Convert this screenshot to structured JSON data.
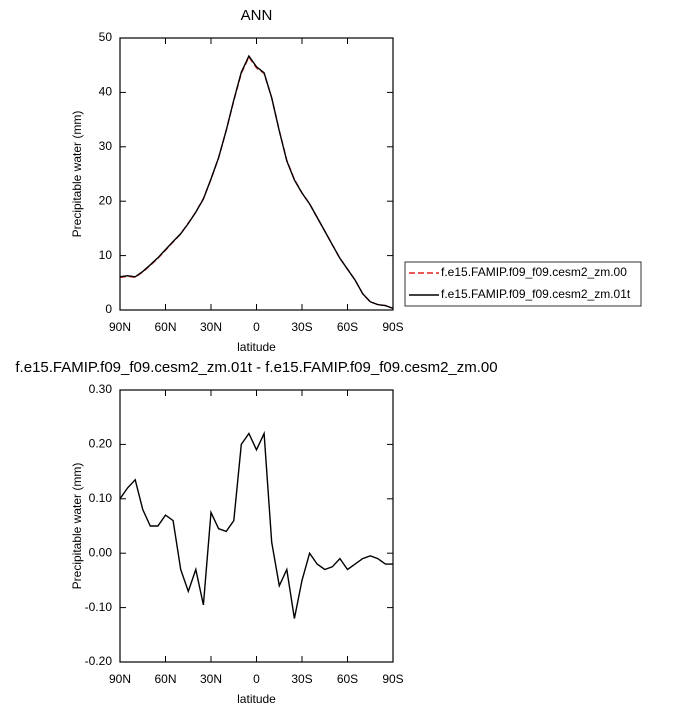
{
  "chart_data": [
    {
      "type": "line",
      "title": "ANN",
      "xlabel": "latitude",
      "ylabel": "Precipitable water (mm)",
      "x": [
        90,
        85,
        80,
        75,
        70,
        65,
        60,
        55,
        50,
        45,
        40,
        35,
        30,
        25,
        20,
        15,
        10,
        5,
        0,
        -5,
        -10,
        -15,
        -20,
        -25,
        -30,
        -35,
        -40,
        -45,
        -50,
        -55,
        -60,
        -65,
        -70,
        -75,
        -80,
        -85,
        -90
      ],
      "series": [
        {
          "name": "f.e15.FAMIP.f09_f09.cesm2_zm.00",
          "color": "#e02020",
          "dashed": true,
          "values": [
            6.0,
            6.2,
            6.0,
            7.0,
            8.2,
            9.5,
            11.0,
            12.5,
            14.0,
            16.0,
            18.0,
            20.5,
            24.0,
            28.0,
            33.0,
            38.5,
            43.5,
            46.5,
            44.5,
            43.5,
            39.0,
            33.0,
            27.5,
            24.0,
            21.5,
            19.5,
            17.0,
            14.5,
            12.0,
            9.5,
            7.5,
            5.5,
            3.0,
            1.5,
            1.0,
            0.8,
            0.3
          ]
        },
        {
          "name": "f.e15.FAMIP.f09_f09.cesm2_zm.01t",
          "color": "#000000",
          "dashed": false,
          "values": [
            6.1,
            6.3,
            6.1,
            7.1,
            8.3,
            9.6,
            11.1,
            12.6,
            14.0,
            15.9,
            18.0,
            20.4,
            24.1,
            28.0,
            33.0,
            38.6,
            43.7,
            46.7,
            44.7,
            43.6,
            39.0,
            32.9,
            27.4,
            23.9,
            21.5,
            19.5,
            17.0,
            14.5,
            12.0,
            9.5,
            7.5,
            5.5,
            3.0,
            1.5,
            1.0,
            0.8,
            0.3
          ]
        }
      ],
      "xlim": [
        90,
        -90
      ],
      "ylim": [
        0,
        50
      ],
      "xticks": [
        {
          "value": 90,
          "label": "90N"
        },
        {
          "value": 60,
          "label": "60N"
        },
        {
          "value": 30,
          "label": "30N"
        },
        0,
        {
          "value": -30,
          "label": "30S"
        },
        {
          "value": -60,
          "label": "60S"
        },
        {
          "value": -90,
          "label": "90S"
        }
      ],
      "yticks": [
        0,
        10,
        20,
        30,
        40,
        50
      ],
      "legend": "outside-right"
    },
    {
      "type": "line",
      "title": "f.e15.FAMIP.f09_f09.cesm2_zm.01t - f.e15.FAMIP.f09_f09.cesm2_zm.00",
      "xlabel": "latitude",
      "ylabel": "Precipitable water (mm)",
      "x": [
        90,
        85,
        80,
        75,
        70,
        65,
        60,
        55,
        50,
        45,
        40,
        35,
        30,
        25,
        20,
        15,
        10,
        5,
        0,
        -5,
        -10,
        -15,
        -20,
        -25,
        -30,
        -35,
        -40,
        -45,
        -50,
        -55,
        -60,
        -65,
        -70,
        -75,
        -80,
        -85,
        -90
      ],
      "series": [
        {
          "color": "#000000",
          "dashed": false,
          "values": [
            0.1,
            0.12,
            0.135,
            0.08,
            0.05,
            0.05,
            0.07,
            0.06,
            -0.03,
            -0.07,
            -0.03,
            -0.095,
            0.075,
            0.045,
            0.04,
            0.06,
            0.2,
            0.22,
            0.19,
            0.22,
            0.02,
            -0.06,
            -0.03,
            -0.12,
            -0.05,
            0.0,
            -0.02,
            -0.03,
            -0.025,
            -0.01,
            -0.03,
            -0.02,
            -0.01,
            -0.005,
            -0.01,
            -0.02,
            -0.02
          ]
        }
      ],
      "xlim": [
        90,
        -90
      ],
      "ylim": [
        -0.2,
        0.3
      ],
      "xticks": [
        {
          "value": 90,
          "label": "90N"
        },
        {
          "value": 60,
          "label": "60N"
        },
        {
          "value": 30,
          "label": "30N"
        },
        0,
        {
          "value": -30,
          "label": "30S"
        },
        {
          "value": -60,
          "label": "60S"
        },
        {
          "value": -90,
          "label": "90S"
        }
      ],
      "yticks": [
        {
          "value": -0.2,
          "label": "-0.20"
        },
        {
          "value": -0.1,
          "label": "-0.10"
        },
        {
          "value": 0,
          "label": "0.00"
        },
        {
          "value": 0.1,
          "label": "0.10"
        },
        {
          "value": 0.2,
          "label": "0.20"
        },
        {
          "value": 0.3,
          "label": "0.30"
        }
      ]
    }
  ]
}
